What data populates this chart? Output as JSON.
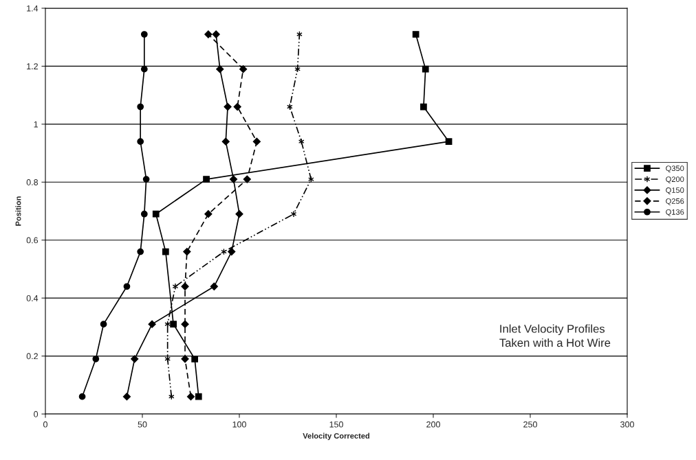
{
  "chart_data": {
    "type": "line",
    "xlabel": "Velocity Corrected",
    "ylabel": "Position",
    "xlim": [
      0,
      300
    ],
    "xticks": [
      0,
      50,
      100,
      150,
      200,
      250,
      300
    ],
    "ylim": [
      0,
      1.4
    ],
    "yticks": [
      0,
      0.2,
      0.4,
      0.6,
      0.8,
      1,
      1.2,
      1.4
    ],
    "grid": "y",
    "legend": "right",
    "annotations": [
      "Inlet Velocity Profiles\nTaken with a Hot Wire"
    ],
    "series": [
      {
        "name": "Q350",
        "color": "#000000",
        "marker": "square",
        "line_style": "solid",
        "x": [
          79,
          77,
          66,
          62,
          57,
          83,
          208,
          195,
          196,
          191
        ],
        "values": [
          0.06,
          0.19,
          0.31,
          0.56,
          0.69,
          0.81,
          0.94,
          1.06,
          1.19,
          1.31
        ]
      },
      {
        "name": "Q200",
        "color": "#000000",
        "marker": "cross",
        "line_style": "dashdot",
        "x": [
          65,
          63,
          63,
          67,
          92,
          128,
          137,
          132,
          126,
          130,
          131
        ],
        "values": [
          0.06,
          0.19,
          0.31,
          0.44,
          0.56,
          0.69,
          0.81,
          0.94,
          1.06,
          1.19,
          1.31
        ]
      },
      {
        "name": "Q150",
        "color": "#000000",
        "marker": "diamond",
        "line_style": "solid",
        "x": [
          42,
          46,
          55,
          87,
          96,
          100,
          97,
          93,
          94,
          90,
          88
        ],
        "values": [
          0.06,
          0.19,
          0.31,
          0.44,
          0.56,
          0.69,
          0.81,
          0.94,
          1.06,
          1.19,
          1.31
        ]
      },
      {
        "name": "Q256",
        "color": "#000000",
        "marker": "diamond",
        "line_style": "dashed",
        "x": [
          75,
          72,
          72,
          72,
          73,
          84,
          104,
          109,
          99,
          102,
          84
        ],
        "values": [
          0.06,
          0.19,
          0.31,
          0.44,
          0.56,
          0.69,
          0.81,
          0.94,
          1.06,
          1.19,
          1.31
        ]
      },
      {
        "name": "Q136",
        "color": "#000000",
        "marker": "circle",
        "line_style": "solid",
        "x": [
          19,
          26,
          30,
          42,
          49,
          51,
          52,
          49,
          49,
          51,
          51
        ],
        "values": [
          0.06,
          0.19,
          0.31,
          0.44,
          0.56,
          0.69,
          0.81,
          0.94,
          1.06,
          1.19,
          1.31
        ]
      }
    ]
  }
}
